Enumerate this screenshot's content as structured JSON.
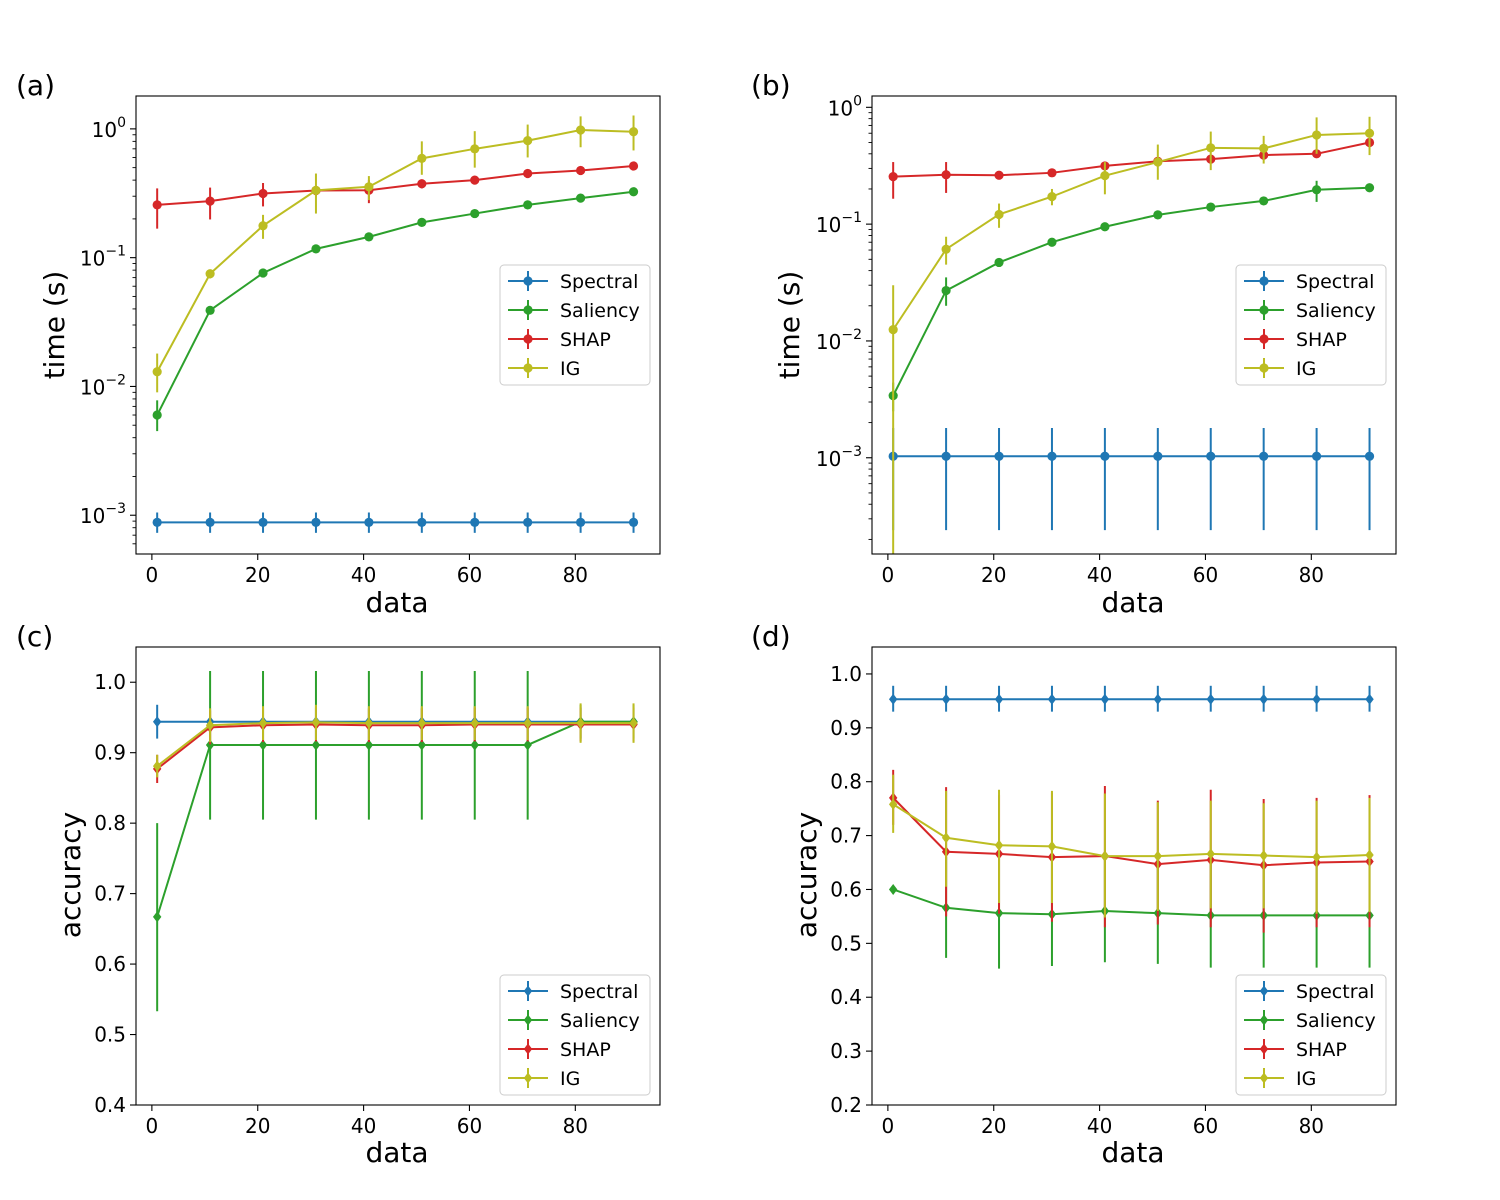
{
  "colors": {
    "Spectral": "#1f77b4",
    "Saliency": "#2ca02c",
    "SHAP": "#d62728",
    "IG": "#bcbd22"
  },
  "chart_data": [
    {
      "panel": "(a)",
      "type": "line",
      "scale": "log",
      "marker": "circle",
      "xlabel": "data",
      "ylabel": "time (s)",
      "xlim": [
        -3,
        96
      ],
      "ylim": [
        0.0005,
        1.8
      ],
      "xticks": [
        0,
        20,
        40,
        60,
        80
      ],
      "xtick_labels": [
        "0",
        "20",
        "40",
        "60",
        "80"
      ],
      "yticks": [
        0.001,
        0.01,
        0.1,
        1
      ],
      "ytick_labels": [
        [
          "10",
          "−3"
        ],
        [
          "10",
          "−2"
        ],
        [
          "10",
          "−1"
        ],
        [
          "10",
          "0"
        ]
      ],
      "legend": [
        "Spectral",
        "Saliency",
        "SHAP",
        "IG"
      ],
      "legend_loc": "center-right",
      "x": [
        1,
        11,
        21,
        31,
        41,
        51,
        61,
        71,
        81,
        91
      ],
      "series": [
        {
          "name": "Spectral",
          "values": [
            0.00088,
            0.00088,
            0.00088,
            0.00088,
            0.00088,
            0.00088,
            0.00088,
            0.00088,
            0.00088,
            0.00088
          ],
          "lo": [
            0.00073,
            0.00073,
            0.00073,
            0.00073,
            0.00073,
            0.00073,
            0.00073,
            0.00073,
            0.00073,
            0.00073
          ],
          "hi": [
            0.00105,
            0.00105,
            0.00105,
            0.00105,
            0.00105,
            0.00105,
            0.00105,
            0.00105,
            0.00105,
            0.00105
          ]
        },
        {
          "name": "Saliency",
          "values": [
            0.006,
            0.039,
            0.076,
            0.117,
            0.145,
            0.188,
            0.22,
            0.257,
            0.29,
            0.325
          ],
          "lo": [
            0.0045,
            0.037,
            0.073,
            0.113,
            0.14,
            0.182,
            0.213,
            0.249,
            0.281,
            0.315
          ],
          "hi": [
            0.0078,
            0.041,
            0.079,
            0.121,
            0.15,
            0.194,
            0.227,
            0.265,
            0.299,
            0.335
          ]
        },
        {
          "name": "SHAP",
          "values": [
            0.257,
            0.275,
            0.315,
            0.332,
            0.334,
            0.375,
            0.4,
            0.45,
            0.475,
            0.515
          ],
          "lo": [
            0.168,
            0.198,
            0.25,
            0.3,
            0.265,
            0.345,
            0.37,
            0.415,
            0.44,
            0.48
          ],
          "hi": [
            0.345,
            0.35,
            0.38,
            0.365,
            0.4,
            0.405,
            0.43,
            0.485,
            0.51,
            0.55
          ]
        },
        {
          "name": "IG",
          "values": [
            0.013,
            0.075,
            0.177,
            0.333,
            0.355,
            0.59,
            0.7,
            0.81,
            0.98,
            0.95
          ],
          "lo": [
            0.009,
            0.069,
            0.14,
            0.22,
            0.28,
            0.44,
            0.5,
            0.6,
            0.72,
            0.68
          ],
          "hi": [
            0.018,
            0.081,
            0.215,
            0.45,
            0.43,
            0.8,
            0.96,
            1.08,
            1.25,
            1.27
          ]
        }
      ]
    },
    {
      "panel": "(b)",
      "type": "line",
      "scale": "log",
      "marker": "circle",
      "xlabel": "data",
      "ylabel": "time (s)",
      "xlim": [
        -3,
        96
      ],
      "ylim": [
        0.00015,
        1.25
      ],
      "xticks": [
        0,
        20,
        40,
        60,
        80
      ],
      "xtick_labels": [
        "0",
        "20",
        "40",
        "60",
        "80"
      ],
      "yticks": [
        0.001,
        0.01,
        0.1,
        1
      ],
      "ytick_labels": [
        [
          "10",
          "−3"
        ],
        [
          "10",
          "−2"
        ],
        [
          "10",
          "−1"
        ],
        [
          "10",
          "0"
        ]
      ],
      "legend": [
        "Spectral",
        "Saliency",
        "SHAP",
        "IG"
      ],
      "legend_loc": "center-right",
      "x": [
        1,
        11,
        21,
        31,
        41,
        51,
        61,
        71,
        81,
        91
      ],
      "series": [
        {
          "name": "Spectral",
          "values": [
            0.00103,
            0.00103,
            0.00103,
            0.00103,
            0.00103,
            0.00103,
            0.00103,
            0.00103,
            0.00103,
            0.00103
          ],
          "lo": [
            0.00024,
            0.00024,
            0.00024,
            0.00024,
            0.00024,
            0.00024,
            0.00024,
            0.00024,
            0.00024,
            0.00024
          ],
          "hi": [
            0.0018,
            0.0018,
            0.0018,
            0.0018,
            0.0018,
            0.0018,
            0.0018,
            0.0018,
            0.0018,
            0.0018
          ]
        },
        {
          "name": "Saliency",
          "values": [
            0.0034,
            0.027,
            0.047,
            0.07,
            0.095,
            0.12,
            0.14,
            0.158,
            0.197,
            0.205
          ],
          "lo": [
            0.0025,
            0.02,
            0.045,
            0.067,
            0.091,
            0.116,
            0.135,
            0.152,
            0.155,
            0.2
          ],
          "hi": [
            0.0044,
            0.035,
            0.049,
            0.073,
            0.099,
            0.124,
            0.145,
            0.164,
            0.235,
            0.21
          ]
        },
        {
          "name": "SHAP",
          "values": [
            0.255,
            0.265,
            0.262,
            0.275,
            0.315,
            0.345,
            0.36,
            0.39,
            0.4,
            0.5
          ],
          "lo": [
            0.165,
            0.185,
            0.25,
            0.262,
            0.29,
            0.315,
            0.335,
            0.36,
            0.375,
            0.455
          ],
          "hi": [
            0.34,
            0.34,
            0.275,
            0.29,
            0.34,
            0.375,
            0.385,
            0.42,
            0.425,
            0.545
          ]
        },
        {
          "name": "IG",
          "values": [
            0.0125,
            0.061,
            0.121,
            0.172,
            0.26,
            0.34,
            0.45,
            0.445,
            0.58,
            0.6
          ],
          "lo": [
            0.00012,
            0.045,
            0.093,
            0.145,
            0.18,
            0.24,
            0.29,
            0.33,
            0.4,
            0.39
          ],
          "hi": [
            0.03,
            0.078,
            0.15,
            0.2,
            0.34,
            0.48,
            0.62,
            0.57,
            0.82,
            0.83
          ]
        }
      ]
    },
    {
      "panel": "(c)",
      "type": "line",
      "scale": "linear",
      "marker": "diamond",
      "xlabel": "data",
      "ylabel": "accuracy",
      "xlim": [
        -3,
        96
      ],
      "ylim": [
        0.4,
        1.05
      ],
      "xticks": [
        0,
        20,
        40,
        60,
        80
      ],
      "xtick_labels": [
        "0",
        "20",
        "40",
        "60",
        "80"
      ],
      "yticks": [
        0.4,
        0.5,
        0.6,
        0.7,
        0.8,
        0.9,
        1.0
      ],
      "ytick_labels": [
        "0.4",
        "0.5",
        "0.6",
        "0.7",
        "0.8",
        "0.9",
        "1.0"
      ],
      "legend": [
        "Spectral",
        "Saliency",
        "SHAP",
        "IG"
      ],
      "legend_loc": "lower-right",
      "x": [
        1,
        11,
        21,
        31,
        41,
        51,
        61,
        71,
        81,
        91
      ],
      "series": [
        {
          "name": "Spectral",
          "values": [
            0.944,
            0.944,
            0.944,
            0.944,
            0.944,
            0.944,
            0.944,
            0.944,
            0.944,
            0.944
          ],
          "lo": [
            0.92,
            0.944,
            0.944,
            0.944,
            0.944,
            0.944,
            0.944,
            0.944,
            0.944,
            0.944
          ],
          "hi": [
            0.968,
            0.944,
            0.944,
            0.944,
            0.944,
            0.944,
            0.944,
            0.944,
            0.944,
            0.944
          ]
        },
        {
          "name": "Saliency",
          "values": [
            0.667,
            0.911,
            0.911,
            0.911,
            0.911,
            0.911,
            0.911,
            0.911,
            0.944,
            0.944
          ],
          "lo": [
            0.533,
            0.805,
            0.805,
            0.805,
            0.805,
            0.805,
            0.805,
            0.805,
            0.92,
            0.92
          ],
          "hi": [
            0.8,
            1.016,
            1.016,
            1.016,
            1.016,
            1.016,
            1.016,
            1.016,
            0.968,
            0.968
          ]
        },
        {
          "name": "SHAP",
          "values": [
            0.877,
            0.936,
            0.939,
            0.94,
            0.939,
            0.939,
            0.94,
            0.94,
            0.94,
            0.94
          ],
          "lo": [
            0.857,
            0.912,
            0.915,
            0.916,
            0.915,
            0.915,
            0.916,
            0.916,
            0.916,
            0.916
          ],
          "hi": [
            0.897,
            0.96,
            0.963,
            0.964,
            0.963,
            0.963,
            0.964,
            0.964,
            0.964,
            0.964
          ]
        },
        {
          "name": "IG",
          "values": [
            0.881,
            0.939,
            0.942,
            0.943,
            0.942,
            0.942,
            0.942,
            0.942,
            0.942,
            0.942
          ],
          "lo": [
            0.865,
            0.915,
            0.918,
            0.918,
            0.918,
            0.918,
            0.918,
            0.918,
            0.914,
            0.914
          ],
          "hi": [
            0.897,
            0.963,
            0.966,
            0.968,
            0.966,
            0.966,
            0.966,
            0.966,
            0.97,
            0.97
          ]
        }
      ]
    },
    {
      "panel": "(d)",
      "type": "line",
      "scale": "linear",
      "marker": "diamond",
      "xlabel": "data",
      "ylabel": "accuracy",
      "xlim": [
        -3,
        96
      ],
      "ylim": [
        0.2,
        1.05
      ],
      "xticks": [
        0,
        20,
        40,
        60,
        80
      ],
      "xtick_labels": [
        "0",
        "20",
        "40",
        "60",
        "80"
      ],
      "yticks": [
        0.2,
        0.3,
        0.4,
        0.5,
        0.6,
        0.7,
        0.8,
        0.9,
        1.0
      ],
      "ytick_labels": [
        "0.2",
        "0.3",
        "0.4",
        "0.5",
        "0.6",
        "0.7",
        "0.8",
        "0.9",
        "1.0"
      ],
      "legend": [
        "Spectral",
        "Saliency",
        "SHAP",
        "IG"
      ],
      "legend_loc": "lower-right",
      "x": [
        1,
        11,
        21,
        31,
        41,
        51,
        61,
        71,
        81,
        91
      ],
      "series": [
        {
          "name": "Spectral",
          "values": [
            0.953,
            0.953,
            0.953,
            0.953,
            0.953,
            0.953,
            0.953,
            0.953,
            0.953,
            0.953
          ],
          "lo": [
            0.93,
            0.93,
            0.93,
            0.93,
            0.93,
            0.93,
            0.93,
            0.93,
            0.93,
            0.93
          ],
          "hi": [
            0.978,
            0.978,
            0.978,
            0.978,
            0.978,
            0.978,
            0.978,
            0.978,
            0.978,
            0.978
          ]
        },
        {
          "name": "Saliency",
          "values": [
            0.6,
            0.566,
            0.556,
            0.554,
            0.56,
            0.556,
            0.552,
            0.552,
            0.552,
            0.552
          ],
          "lo": [
            0.595,
            0.473,
            0.453,
            0.458,
            0.465,
            0.462,
            0.455,
            0.455,
            0.455,
            0.455
          ],
          "hi": [
            0.605,
            0.66,
            0.66,
            0.65,
            0.655,
            0.65,
            0.648,
            0.648,
            0.648,
            0.648
          ]
        },
        {
          "name": "SHAP",
          "values": [
            0.77,
            0.67,
            0.666,
            0.66,
            0.662,
            0.647,
            0.655,
            0.645,
            0.65,
            0.652
          ],
          "lo": [
            0.72,
            0.55,
            0.555,
            0.54,
            0.53,
            0.535,
            0.53,
            0.52,
            0.53,
            0.53
          ],
          "hi": [
            0.822,
            0.79,
            0.775,
            0.78,
            0.792,
            0.765,
            0.785,
            0.768,
            0.77,
            0.775
          ]
        },
        {
          "name": "IG",
          "values": [
            0.758,
            0.696,
            0.682,
            0.68,
            0.662,
            0.662,
            0.666,
            0.663,
            0.66,
            0.664
          ],
          "lo": [
            0.705,
            0.605,
            0.575,
            0.575,
            0.548,
            0.56,
            0.565,
            0.565,
            0.555,
            0.558
          ],
          "hi": [
            0.813,
            0.783,
            0.785,
            0.783,
            0.778,
            0.762,
            0.765,
            0.76,
            0.765,
            0.77
          ]
        }
      ]
    }
  ]
}
